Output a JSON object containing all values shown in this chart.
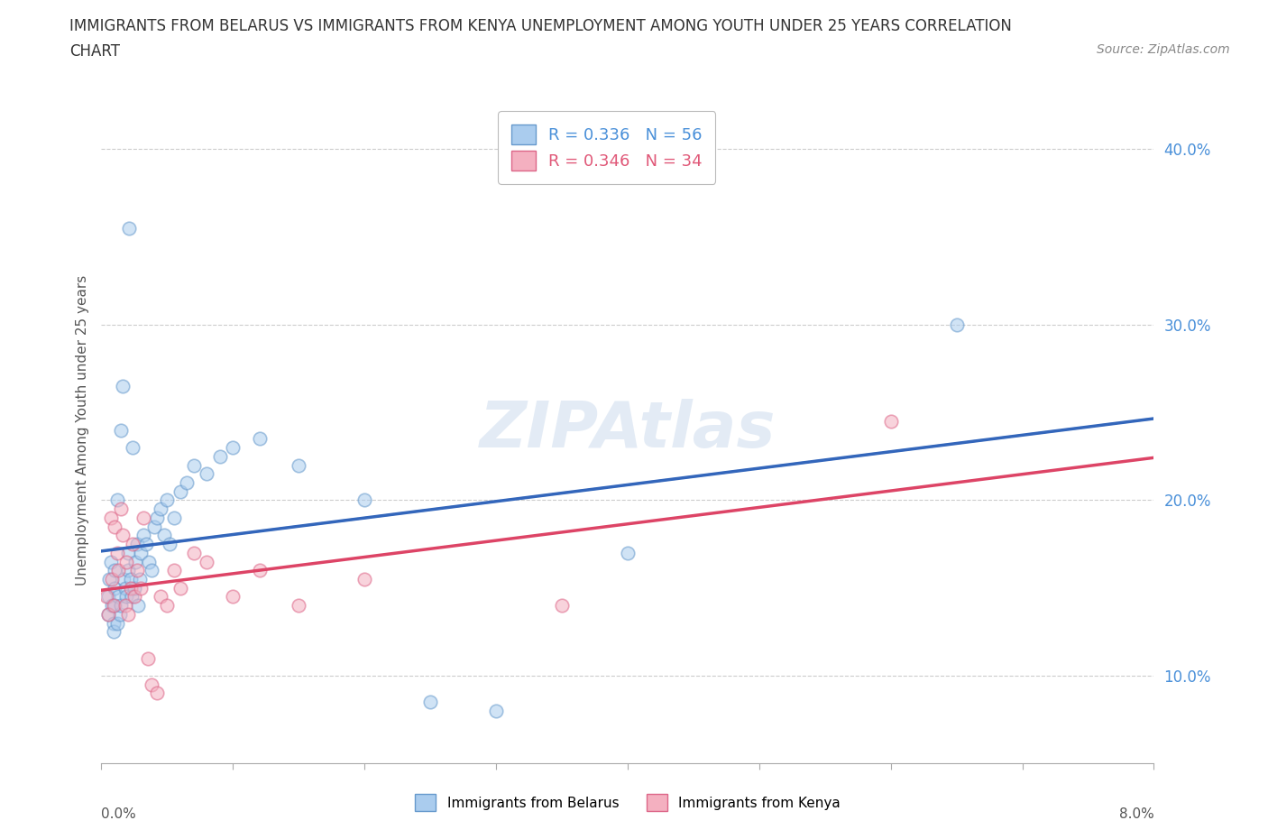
{
  "title_line1": "IMMIGRANTS FROM BELARUS VS IMMIGRANTS FROM KENYA UNEMPLOYMENT AMONG YOUTH UNDER 25 YEARS CORRELATION",
  "title_line2": "CHART",
  "source": "Source: ZipAtlas.com",
  "ylabel": "Unemployment Among Youth under 25 years",
  "legend1_label": "R = 0.336   N = 56",
  "legend2_label": "R = 0.346   N = 34",
  "legend1_color": "#4a90d9",
  "legend2_color": "#e05878",
  "watermark_text": "ZIPAtlas",
  "bottom_legend1": "Immigrants from Belarus",
  "bottom_legend2": "Immigrants from Kenya",
  "scatter_belarus_x": [
    0.05,
    0.05,
    0.06,
    0.07,
    0.08,
    0.09,
    0.09,
    0.1,
    0.1,
    0.1,
    0.12,
    0.12,
    0.13,
    0.14,
    0.15,
    0.15,
    0.16,
    0.17,
    0.18,
    0.19,
    0.2,
    0.2,
    0.21,
    0.22,
    0.23,
    0.24,
    0.25,
    0.26,
    0.27,
    0.28,
    0.29,
    0.3,
    0.32,
    0.34,
    0.36,
    0.38,
    0.4,
    0.42,
    0.45,
    0.48,
    0.5,
    0.52,
    0.55,
    0.6,
    0.65,
    0.7,
    0.8,
    0.9,
    1.0,
    1.2,
    1.5,
    2.0,
    2.5,
    3.0,
    4.0,
    6.5
  ],
  "scatter_belarus_y": [
    14.5,
    13.5,
    15.5,
    16.5,
    14.0,
    13.0,
    12.5,
    16.0,
    15.0,
    14.0,
    20.0,
    13.0,
    14.5,
    13.5,
    24.0,
    14.0,
    26.5,
    15.5,
    15.0,
    14.5,
    17.0,
    16.0,
    35.5,
    15.5,
    14.5,
    23.0,
    15.0,
    16.5,
    17.5,
    14.0,
    15.5,
    17.0,
    18.0,
    17.5,
    16.5,
    16.0,
    18.5,
    19.0,
    19.5,
    18.0,
    20.0,
    17.5,
    19.0,
    20.5,
    21.0,
    22.0,
    21.5,
    22.5,
    23.0,
    23.5,
    22.0,
    20.0,
    8.5,
    8.0,
    17.0,
    30.0
  ],
  "scatter_kenya_x": [
    0.04,
    0.05,
    0.07,
    0.08,
    0.09,
    0.1,
    0.12,
    0.13,
    0.15,
    0.16,
    0.18,
    0.19,
    0.2,
    0.22,
    0.24,
    0.25,
    0.27,
    0.3,
    0.32,
    0.35,
    0.38,
    0.42,
    0.45,
    0.5,
    0.55,
    0.6,
    0.7,
    0.8,
    1.0,
    1.2,
    1.5,
    2.0,
    3.5,
    6.0
  ],
  "scatter_kenya_y": [
    14.5,
    13.5,
    19.0,
    15.5,
    14.0,
    18.5,
    17.0,
    16.0,
    19.5,
    18.0,
    14.0,
    16.5,
    13.5,
    15.0,
    17.5,
    14.5,
    16.0,
    15.0,
    19.0,
    11.0,
    9.5,
    9.0,
    14.5,
    14.0,
    16.0,
    15.0,
    17.0,
    16.5,
    14.5,
    16.0,
    14.0,
    15.5,
    14.0,
    24.5
  ],
  "belarus_face_color": "#aaccee",
  "kenya_face_color": "#f4b0c0",
  "belarus_edge_color": "#6699cc",
  "kenya_edge_color": "#dd6688",
  "trendline_belarus_solid_color": "#3366bb",
  "trendline_belarus_dashed_color": "#88aadd",
  "trendline_kenya_color": "#dd4466",
  "xlim": [
    0.0,
    0.08
  ],
  "ylim_min": 0.05,
  "ylim_max": 0.43,
  "ytick_vals": [
    0.1,
    0.2,
    0.3,
    0.4
  ],
  "ytick_labels": [
    "10.0%",
    "20.0%",
    "30.0%",
    "40.0%"
  ],
  "ytick_color": "#4a90d9",
  "grid_color": "#cccccc",
  "background_color": "#ffffff",
  "title_fontsize": 12,
  "axis_label_fontsize": 11,
  "scatter_size": 110,
  "scatter_alpha": 0.55
}
